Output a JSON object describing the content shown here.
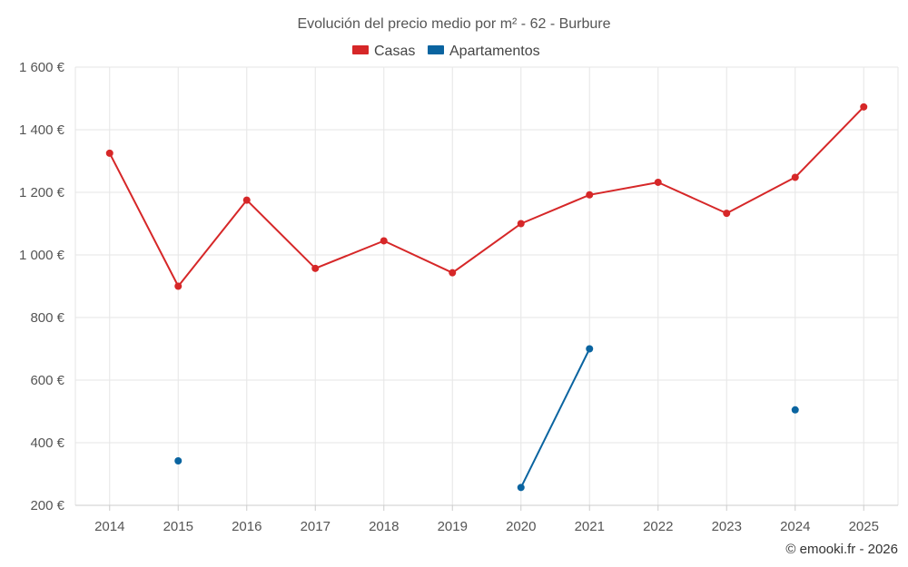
{
  "chart_data": {
    "type": "line",
    "title": "Evolución del precio medio por m² - 62 - Burbure",
    "categories": [
      "2014",
      "2015",
      "2016",
      "2017",
      "2018",
      "2019",
      "2020",
      "2021",
      "2022",
      "2023",
      "2024",
      "2025"
    ],
    "series": [
      {
        "name": "Casas",
        "color": "#d62728",
        "values": [
          1325,
          900,
          1175,
          957,
          1045,
          943,
          1100,
          1192,
          1232,
          1133,
          1248,
          1473
        ]
      },
      {
        "name": "Apartamentos",
        "color": "#0a64a0",
        "values": [
          null,
          342,
          null,
          null,
          null,
          null,
          257,
          700,
          null,
          null,
          505,
          null
        ]
      }
    ],
    "ylim": [
      200,
      1600
    ],
    "yticks": [
      200,
      400,
      600,
      800,
      1000,
      1200,
      1400,
      1600
    ],
    "ytick_labels": [
      "200 €",
      "400 €",
      "600 €",
      "800 €",
      "1 000 €",
      "1 200 €",
      "1 400 €",
      "1 600 €"
    ],
    "grid": true,
    "legend_position": "top-center"
  },
  "credit": "© emooki.fr - 2026"
}
